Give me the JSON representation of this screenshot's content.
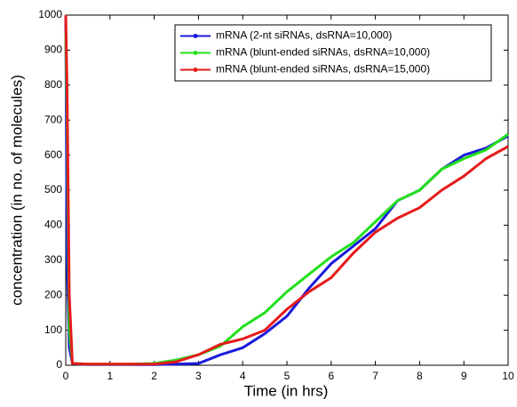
{
  "chart_data": {
    "type": "line",
    "x_label": "Time (in hrs)",
    "y_label": "concentration (in no. of molecules)",
    "x": [
      0,
      0.03,
      0.08,
      0.15,
      0.5,
      1,
      1.5,
      2,
      2.5,
      3,
      3.5,
      4,
      4.5,
      5,
      5.5,
      6,
      6.5,
      7,
      7.5,
      8,
      8.5,
      9,
      9.5,
      10
    ],
    "series": [
      {
        "name": "mRNA (2-nt siRNAs, dsRNA=10,000)",
        "color": "#1a1adc",
        "values": [
          1000,
          300,
          50,
          5,
          2,
          2,
          2,
          2,
          3,
          5,
          30,
          50,
          90,
          140,
          220,
          290,
          340,
          390,
          470,
          500,
          560,
          600,
          620,
          655
        ]
      },
      {
        "name": "mRNA (blunt-ended siRNAs, dsRNA=10,000)",
        "color": "#22e01c",
        "values": [
          950,
          700,
          100,
          5,
          3,
          3,
          3,
          5,
          15,
          30,
          55,
          110,
          150,
          210,
          260,
          310,
          350,
          410,
          470,
          500,
          560,
          590,
          615,
          660
        ]
      },
      {
        "name": "mRNA (blunt-ended siRNAs, dsRNA=15,000)",
        "color": "#e61a1a",
        "values": [
          1000,
          790,
          200,
          5,
          3,
          3,
          3,
          3,
          10,
          30,
          60,
          75,
          100,
          160,
          210,
          250,
          320,
          380,
          420,
          450,
          500,
          540,
          590,
          625
        ]
      }
    ],
    "xlim": [
      0,
      10
    ],
    "xticks": [
      0,
      1,
      2,
      3,
      4,
      5,
      6,
      7,
      8,
      9,
      10
    ],
    "ylim": [
      0,
      1000
    ],
    "yticks": [
      0,
      100,
      200,
      300,
      400,
      500,
      600,
      700,
      800,
      900,
      1000
    ],
    "legend": "upper right"
  }
}
